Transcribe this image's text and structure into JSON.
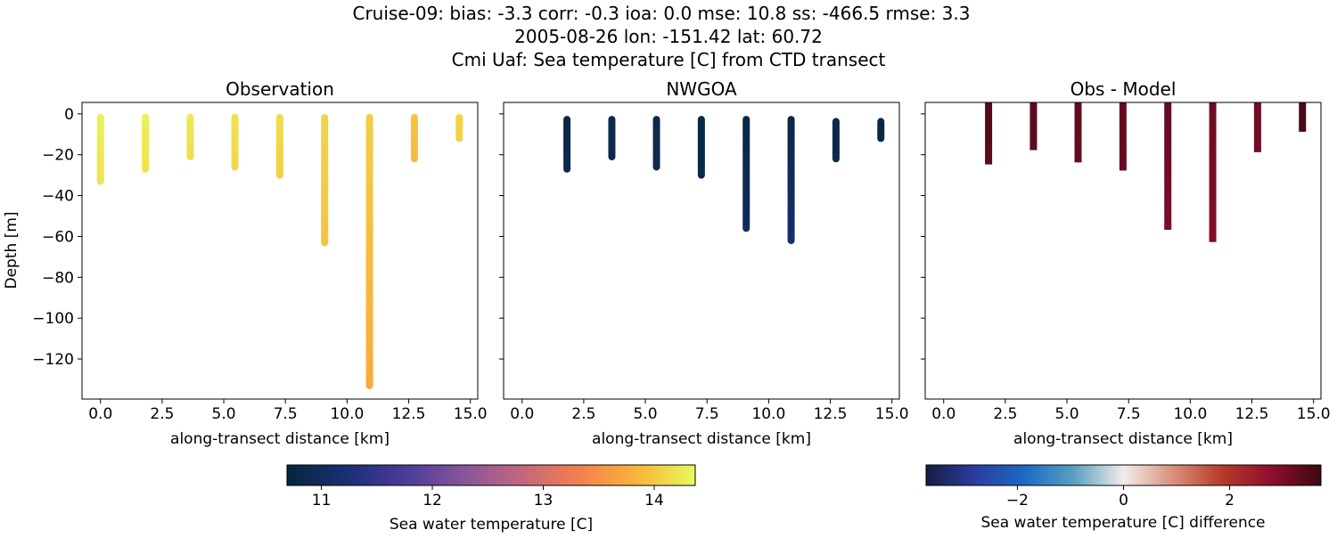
{
  "title_lines": [
    "Cruise-09: bias: -3.3  corr: -0.3  ioa: 0.0  mse: 10.8  ss: -466.5  rmse: 3.3",
    "2005-08-26 lon: -151.42 lat: 60.72",
    "Cmi Uaf: Sea temperature [C] from CTD transect"
  ],
  "chart_data": [
    {
      "type": "scatter",
      "title": "Observation",
      "xlabel": "along-transect distance [km]",
      "ylabel": "Depth [m]",
      "xlim": [
        -0.75,
        15.3
      ],
      "ylim": [
        -139.6,
        5.6
      ],
      "xticks": [
        "0.0",
        "2.5",
        "5.0",
        "7.5",
        "10.0",
        "12.5",
        "15.0"
      ],
      "yticks": [
        "0",
        "−20",
        "−40",
        "−60",
        "−80",
        "−100",
        "−120"
      ],
      "colormap": "thermal",
      "profiles": [
        {
          "x": 0.0,
          "top": 0,
          "bottom": -33,
          "value_top": 14.3,
          "value_bottom": 14.2
        },
        {
          "x": 1.82,
          "top": 0,
          "bottom": -27,
          "value_top": 14.3,
          "value_bottom": 14.2
        },
        {
          "x": 3.64,
          "top": 0,
          "bottom": -21,
          "value_top": 14.25,
          "value_bottom": 14.15
        },
        {
          "x": 5.45,
          "top": 0,
          "bottom": -26,
          "value_top": 14.2,
          "value_bottom": 14.1
        },
        {
          "x": 7.27,
          "top": 0,
          "bottom": -30,
          "value_top": 14.15,
          "value_bottom": 14.05
        },
        {
          "x": 9.09,
          "top": 0,
          "bottom": -63,
          "value_top": 14.1,
          "value_bottom": 13.95
        },
        {
          "x": 10.91,
          "top": 0,
          "bottom": -133,
          "value_top": 14.05,
          "value_bottom": 13.75
        },
        {
          "x": 12.73,
          "top": 0,
          "bottom": -22,
          "value_top": 13.95,
          "value_bottom": 13.9
        },
        {
          "x": 14.55,
          "top": 0,
          "bottom": -12,
          "value_top": 14.1,
          "value_bottom": 14.05
        }
      ]
    },
    {
      "type": "scatter",
      "title": "NWGOA",
      "xlabel": "along-transect distance [km]",
      "xlim": [
        -0.75,
        15.3
      ],
      "ylim": [
        -139.6,
        5.6
      ],
      "xticks": [
        "0.0",
        "2.5",
        "5.0",
        "7.5",
        "10.0",
        "12.5",
        "15.0"
      ],
      "colormap": "thermal",
      "profiles": [
        {
          "x": 1.82,
          "top": -1,
          "bottom": -27,
          "value_top": 10.8,
          "value_bottom": 10.85
        },
        {
          "x": 3.64,
          "top": -1,
          "bottom": -21,
          "value_top": 10.85,
          "value_bottom": 10.85
        },
        {
          "x": 5.45,
          "top": -1,
          "bottom": -26,
          "value_top": 10.85,
          "value_bottom": 10.9
        },
        {
          "x": 7.27,
          "top": -1,
          "bottom": -30,
          "value_top": 10.8,
          "value_bottom": 10.85
        },
        {
          "x": 9.09,
          "top": -1,
          "bottom": -56,
          "value_top": 10.8,
          "value_bottom": 11.0
        },
        {
          "x": 10.91,
          "top": -1,
          "bottom": -62,
          "value_top": 10.8,
          "value_bottom": 11.15
        },
        {
          "x": 12.73,
          "top": -2,
          "bottom": -22,
          "value_top": 10.85,
          "value_bottom": 10.85
        },
        {
          "x": 14.55,
          "top": -2,
          "bottom": -12,
          "value_top": 10.8,
          "value_bottom": 10.8
        }
      ]
    },
    {
      "type": "scatter",
      "title": "Obs - Model",
      "xlabel": "along-transect distance [km]",
      "xlim": [
        -0.75,
        15.3
      ],
      "ylim": [
        -139.6,
        5.6
      ],
      "xticks": [
        "0.0",
        "2.5",
        "5.0",
        "7.5",
        "10.0",
        "12.5",
        "15.0"
      ],
      "colormap": "balance",
      "profiles": [
        {
          "x": 1.82,
          "top": 5.6,
          "bottom": -23,
          "value_top": 3.45,
          "value_bottom": 3.4
        },
        {
          "x": 3.64,
          "top": 5.6,
          "bottom": -16,
          "value_top": 3.4,
          "value_bottom": 3.35
        },
        {
          "x": 5.45,
          "top": 5.6,
          "bottom": -22,
          "value_top": 3.3,
          "value_bottom": 3.25
        },
        {
          "x": 7.27,
          "top": 5.6,
          "bottom": -26,
          "value_top": 3.3,
          "value_bottom": 3.25
        },
        {
          "x": 9.09,
          "top": 5.6,
          "bottom": -55,
          "value_top": 3.3,
          "value_bottom": 3.0
        },
        {
          "x": 10.91,
          "top": 5.6,
          "bottom": -61,
          "value_top": 3.2,
          "value_bottom": 2.9
        },
        {
          "x": 12.73,
          "top": 5.6,
          "bottom": -17,
          "value_top": 3.1,
          "value_bottom": 3.1
        },
        {
          "x": 14.55,
          "top": 5.6,
          "bottom": -7,
          "value_top": 3.6,
          "value_bottom": 3.6
        }
      ]
    }
  ],
  "colorbars": [
    {
      "label": "Sea water temperature [C]",
      "range": [
        10.69,
        14.37
      ],
      "ticks": [
        11,
        12,
        13,
        14
      ],
      "tick_labels": [
        "11",
        "12",
        "13",
        "14"
      ],
      "colormap": "thermal"
    },
    {
      "label": "Sea water temperature [C] difference",
      "range": [
        -3.72,
        3.72
      ],
      "ticks": [
        -2,
        0,
        2
      ],
      "tick_labels": [
        "−2",
        "0",
        "2"
      ],
      "colormap": "balance"
    }
  ]
}
